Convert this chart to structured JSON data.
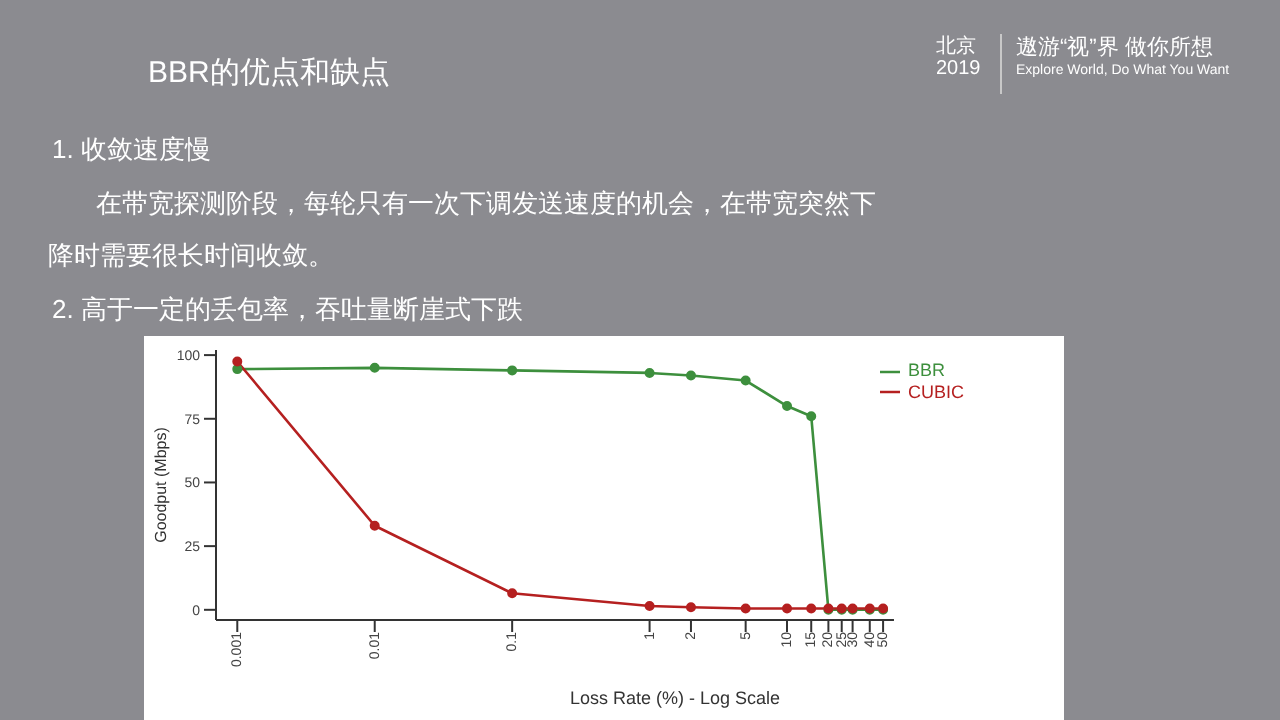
{
  "chart_data": {
    "type": "line",
    "title": "BBR的优点和缺点",
    "annotations": [
      "北京",
      "2019",
      "遨游“视”界  做你所想",
      "Explore World, Do What You Want",
      "1.   收敛速度慢",
      "在带宽探测阶段，每轮只有一次下调发送速度的机会，在带宽突然下",
      "降时需要很长时间收敛。",
      "2.   高于一定的丢包率，吞吐量断崖式下跌"
    ],
    "xlabel": "Loss Rate (%) - Log Scale",
    "ylabel": "Goodput (Mbps)",
    "x": [
      0.001,
      0.01,
      0.1,
      1,
      2,
      5,
      10,
      15,
      20,
      25,
      30,
      40,
      50
    ],
    "series": [
      {
        "name": "BBR",
        "color": "#3d8f3d",
        "values": [
          94.5,
          95,
          94,
          93,
          92,
          90,
          80,
          76,
          0,
          0,
          0,
          0,
          0
        ]
      },
      {
        "name": "CUBIC",
        "color": "#b52020",
        "values": [
          97.5,
          33,
          6.5,
          1.5,
          1,
          0.5,
          0.5,
          0.5,
          0.5,
          0.5,
          0.5,
          0.5,
          0.5
        ]
      }
    ],
    "log": "x",
    "xlim": [
      0.0007,
      60
    ],
    "xticks": [
      0.001,
      0.01,
      0.1,
      1,
      2,
      5,
      10,
      15,
      20,
      25,
      30,
      40,
      50
    ],
    "ylim": [
      -4,
      102
    ],
    "yticks": [
      0,
      25,
      50,
      75,
      100
    ],
    "grid": false,
    "legend": "top right",
    "marker": "circle",
    "line_style": "solid"
  }
}
